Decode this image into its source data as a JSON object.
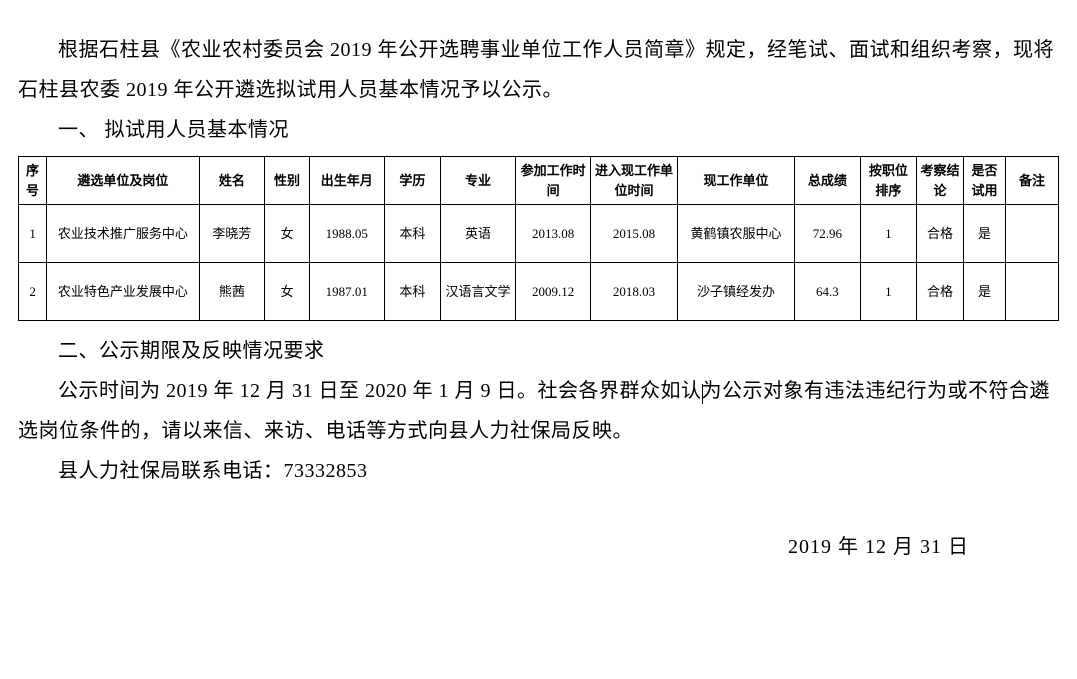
{
  "paragraphs": {
    "p1": "根据石柱县《农业农村委员会 2019 年公开选聘事业单位工作人员简章》规定，经笔试、面试和组织考察，现将石柱县农委 2019 年公开遴选拟试用人员基本情况予以公示。",
    "section1": "一、 拟试用人员基本情况",
    "section2": "二、公示期限及反映情况要求",
    "p2a": "公示时间为 2019 年 12 月 31 日至 2020 年 1 月 9 日。社会各界群众如认",
    "p2b": "为公示对象有违法违纪行为或不符合遴选岗位条件的，请以来信、来访、电话等方式向县人力社保局反映。",
    "p3": "县人力社保局联系电话：73332853",
    "date": "2019 年 12 月 31 日"
  },
  "table": {
    "columns": [
      "序号",
      "遴选单位及岗位",
      "姓名",
      "性别",
      "出生年月",
      "学历",
      "专业",
      "参加工作时间",
      "进入现工作单位时间",
      "现工作单位",
      "总成绩",
      "按职位排序",
      "考察结论",
      "是否试用",
      "备注"
    ],
    "rows": [
      [
        "1",
        "农业技术推广服务中心",
        "李晓芳",
        "女",
        "1988.05",
        "本科",
        "英语",
        "2013.08",
        "2015.08",
        "黄鹤镇农服中心",
        "72.96",
        "1",
        "合格",
        "是",
        ""
      ],
      [
        "2",
        "农业特色产业发展中心",
        "熊茜",
        "女",
        "1987.01",
        "本科",
        "汉语言文学",
        "2009.12",
        "2018.03",
        "沙子镇经发办",
        "64.3",
        "1",
        "合格",
        "是",
        ""
      ]
    ],
    "col_classes": [
      "col-seq",
      "col-unit",
      "col-name",
      "col-gender",
      "col-birth",
      "col-edu",
      "col-major",
      "col-work",
      "col-enter",
      "col-cur",
      "col-score",
      "col-rank",
      "col-eval",
      "col-trial",
      "col-remark"
    ],
    "border_color": "#000000",
    "header_fontsize": 13,
    "cell_fontsize": 13,
    "body_fontsize": 20,
    "background_color": "#ffffff",
    "text_color": "#000000"
  }
}
